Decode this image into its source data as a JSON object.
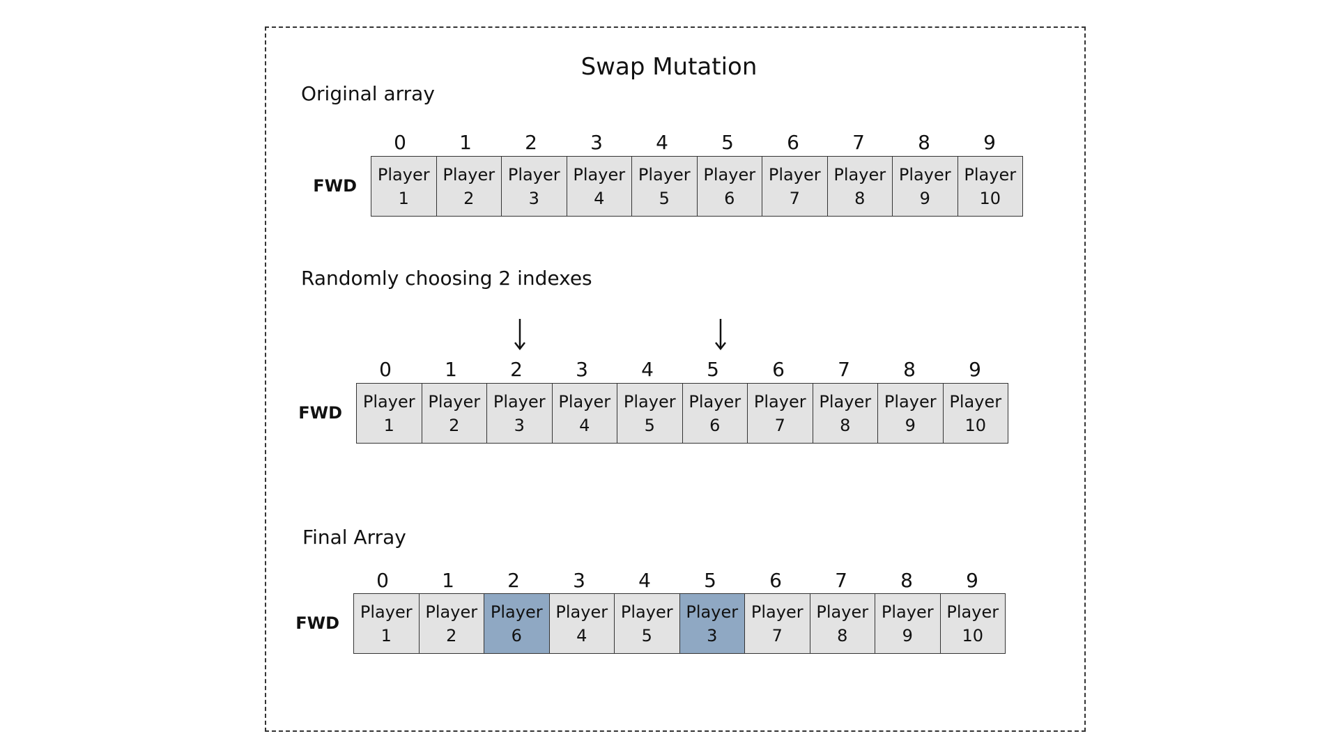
{
  "title": "Swap Mutation",
  "sections": [
    {
      "label": "Original array",
      "row_label": "FWD",
      "indexes": [
        "0",
        "1",
        "2",
        "3",
        "4",
        "5",
        "6",
        "7",
        "8",
        "9"
      ],
      "cells": [
        {
          "l1": "Player",
          "l2": "1"
        },
        {
          "l1": "Player",
          "l2": "2"
        },
        {
          "l1": "Player",
          "l2": "3"
        },
        {
          "l1": "Player",
          "l2": "4"
        },
        {
          "l1": "Player",
          "l2": "5"
        },
        {
          "l1": "Player",
          "l2": "6"
        },
        {
          "l1": "Player",
          "l2": "7"
        },
        {
          "l1": "Player",
          "l2": "8"
        },
        {
          "l1": "Player",
          "l2": "9"
        },
        {
          "l1": "Player",
          "l2": "10"
        }
      ]
    },
    {
      "label": "Randomly choosing 2 indexes",
      "row_label": "FWD",
      "selected_indexes": [
        2,
        5
      ],
      "indexes": [
        "0",
        "1",
        "2",
        "3",
        "4",
        "5",
        "6",
        "7",
        "8",
        "9"
      ],
      "cells": [
        {
          "l1": "Player",
          "l2": "1"
        },
        {
          "l1": "Player",
          "l2": "2"
        },
        {
          "l1": "Player",
          "l2": "3"
        },
        {
          "l1": "Player",
          "l2": "4"
        },
        {
          "l1": "Player",
          "l2": "5"
        },
        {
          "l1": "Player",
          "l2": "6"
        },
        {
          "l1": "Player",
          "l2": "7"
        },
        {
          "l1": "Player",
          "l2": "8"
        },
        {
          "l1": "Player",
          "l2": "9"
        },
        {
          "l1": "Player",
          "l2": "10"
        }
      ]
    },
    {
      "label": "Final Array",
      "row_label": "FWD",
      "highlighted_indexes": [
        2,
        5
      ],
      "indexes": [
        "0",
        "1",
        "2",
        "3",
        "4",
        "5",
        "6",
        "7",
        "8",
        "9"
      ],
      "cells": [
        {
          "l1": "Player",
          "l2": "1"
        },
        {
          "l1": "Player",
          "l2": "2"
        },
        {
          "l1": "Player",
          "l2": "6"
        },
        {
          "l1": "Player",
          "l2": "4"
        },
        {
          "l1": "Player",
          "l2": "5"
        },
        {
          "l1": "Player",
          "l2": "3"
        },
        {
          "l1": "Player",
          "l2": "7"
        },
        {
          "l1": "Player",
          "l2": "8"
        },
        {
          "l1": "Player",
          "l2": "9"
        },
        {
          "l1": "Player",
          "l2": "10"
        }
      ]
    }
  ],
  "colors": {
    "cell": "#e3e3e3",
    "highlight": "#8fa8c3",
    "border": "#333333"
  },
  "icons": {
    "selection_marker": "down-arrow-icon"
  }
}
